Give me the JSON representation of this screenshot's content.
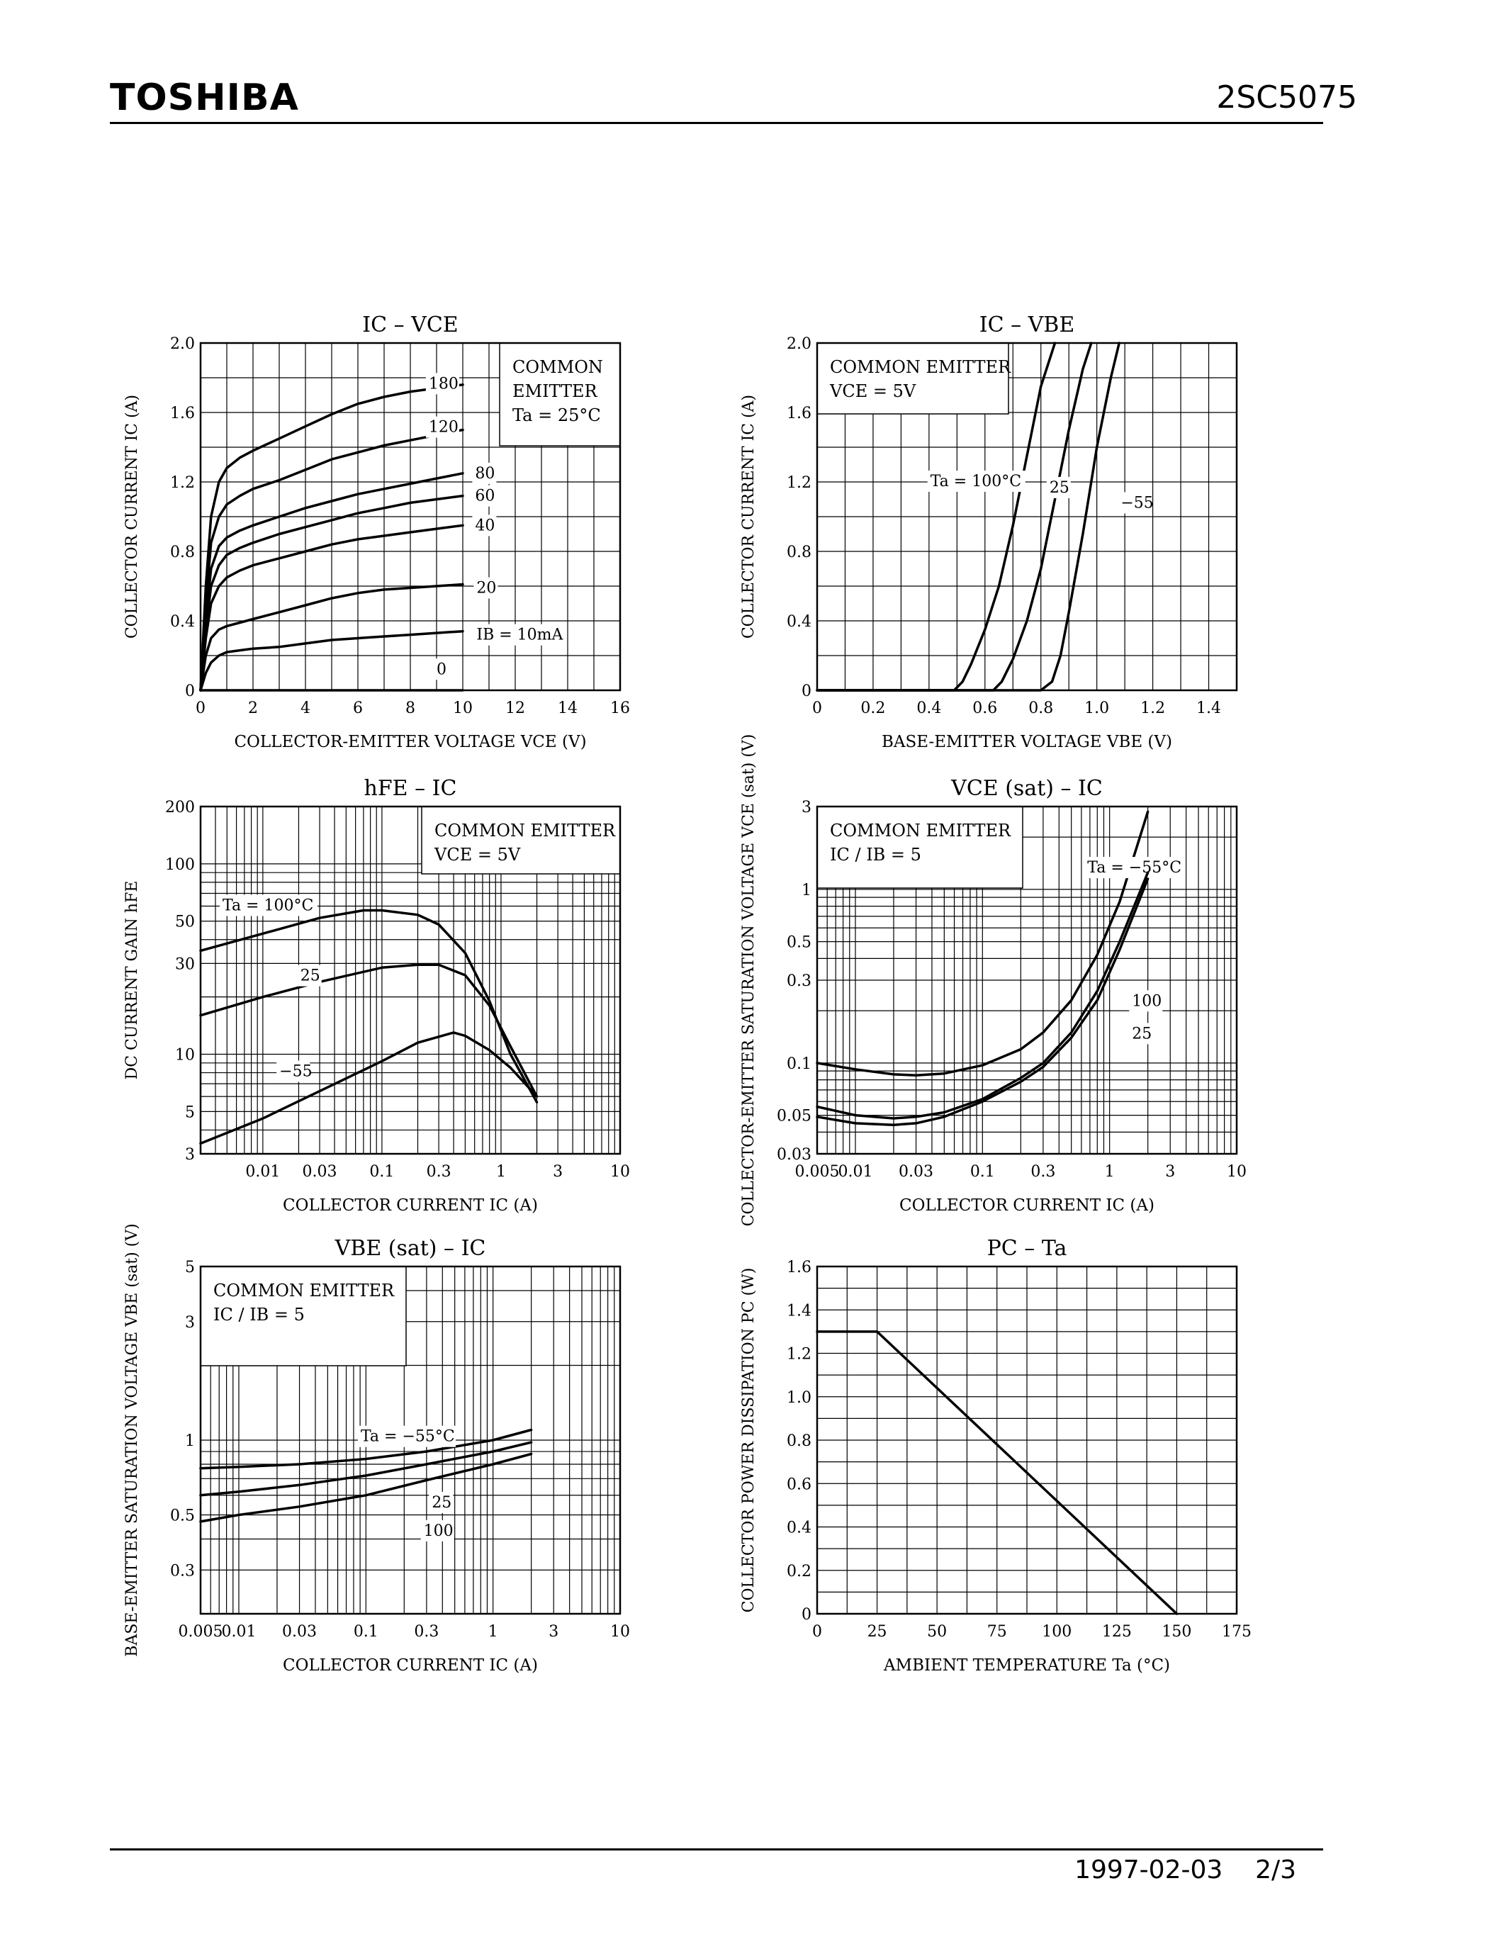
{
  "header": {
    "brand": "TOSHIBA",
    "part_number": "2SC5075"
  },
  "footer": {
    "date": "1997-02-03",
    "page": "2/3"
  },
  "chart_data": [
    {
      "id": "ic-vce",
      "type": "line",
      "title": "IC – VCE",
      "xlabel": "COLLECTOR-EMITTER VOLTAGE   VCE   (V)",
      "ylabel": "COLLECTOR CURRENT   IC   (A)",
      "xscale": "linear",
      "yscale": "linear",
      "xlim": [
        0,
        16
      ],
      "ylim": [
        0,
        2.0
      ],
      "xticks": [
        0,
        2,
        4,
        6,
        8,
        10,
        12,
        14,
        16
      ],
      "yticks": [
        0,
        0.4,
        0.8,
        1.2,
        1.6,
        2.0
      ],
      "xtick_labels": [
        "0",
        "2",
        "4",
        "6",
        "8",
        "10",
        "12",
        "14",
        "16"
      ],
      "ytick_labels": [
        "0",
        "0.4",
        "0.8",
        "1.2",
        "1.6",
        "2.0"
      ],
      "annotations": [
        "COMMON",
        "EMITTER",
        "Ta = 25°C"
      ],
      "series": [
        {
          "label": "180",
          "x": [
            0,
            0.2,
            0.4,
            0.7,
            1,
            1.5,
            2,
            3,
            4,
            5,
            6,
            7,
            8,
            9,
            10
          ],
          "y": [
            0,
            0.6,
            1.0,
            1.2,
            1.28,
            1.34,
            1.38,
            1.45,
            1.52,
            1.59,
            1.65,
            1.69,
            1.72,
            1.74,
            1.76
          ]
        },
        {
          "label": "120",
          "x": [
            0,
            0.2,
            0.4,
            0.7,
            1,
            1.5,
            2,
            3,
            4,
            5,
            6,
            7,
            8,
            9,
            10
          ],
          "y": [
            0,
            0.5,
            0.85,
            1.0,
            1.07,
            1.12,
            1.16,
            1.21,
            1.27,
            1.33,
            1.37,
            1.41,
            1.44,
            1.47,
            1.5
          ]
        },
        {
          "label": "80",
          "x": [
            0,
            0.2,
            0.4,
            0.7,
            1,
            1.5,
            2,
            3,
            4,
            5,
            6,
            7,
            8,
            9,
            10
          ],
          "y": [
            0,
            0.4,
            0.7,
            0.83,
            0.88,
            0.92,
            0.95,
            1.0,
            1.05,
            1.09,
            1.13,
            1.16,
            1.19,
            1.22,
            1.25
          ]
        },
        {
          "label": "60",
          "x": [
            0,
            0.2,
            0.4,
            0.7,
            1,
            1.5,
            2,
            3,
            4,
            5,
            6,
            7,
            8,
            9,
            10
          ],
          "y": [
            0,
            0.35,
            0.6,
            0.72,
            0.78,
            0.82,
            0.85,
            0.9,
            0.94,
            0.98,
            1.02,
            1.05,
            1.08,
            1.1,
            1.12
          ]
        },
        {
          "label": "40",
          "x": [
            0,
            0.2,
            0.4,
            0.7,
            1,
            1.5,
            2,
            3,
            4,
            5,
            6,
            7,
            8,
            9,
            10
          ],
          "y": [
            0,
            0.3,
            0.5,
            0.6,
            0.65,
            0.69,
            0.72,
            0.76,
            0.8,
            0.84,
            0.87,
            0.89,
            0.91,
            0.93,
            0.95
          ]
        },
        {
          "label": "20",
          "x": [
            0,
            0.2,
            0.4,
            0.7,
            1,
            1.5,
            2,
            3,
            4,
            5,
            6,
            7,
            8,
            9,
            10
          ],
          "y": [
            0,
            0.2,
            0.3,
            0.35,
            0.37,
            0.39,
            0.41,
            0.45,
            0.49,
            0.53,
            0.56,
            0.58,
            0.59,
            0.6,
            0.61
          ]
        },
        {
          "label": "IB = 10mA",
          "x": [
            0,
            0.2,
            0.4,
            0.7,
            1,
            1.5,
            2,
            3,
            4,
            5,
            6,
            7,
            8,
            9,
            10
          ],
          "y": [
            0,
            0.1,
            0.16,
            0.2,
            0.22,
            0.23,
            0.24,
            0.25,
            0.27,
            0.29,
            0.3,
            0.31,
            0.32,
            0.33,
            0.34
          ]
        },
        {
          "label": "0",
          "x": [
            0,
            10
          ],
          "y": [
            0,
            0
          ]
        }
      ]
    },
    {
      "id": "ic-vbe",
      "type": "line",
      "title": "IC – VBE",
      "xlabel": "BASE-EMITTER VOLTAGE   VBE   (V)",
      "ylabel": "COLLECTOR CURRENT   IC   (A)",
      "xscale": "linear",
      "yscale": "linear",
      "xlim": [
        0,
        1.5
      ],
      "ylim": [
        0,
        2.0
      ],
      "xticks": [
        0,
        0.2,
        0.4,
        0.6,
        0.8,
        1.0,
        1.2,
        1.4
      ],
      "yticks": [
        0,
        0.4,
        0.8,
        1.2,
        1.6,
        2.0
      ],
      "xtick_labels": [
        "0",
        "0.2",
        "0.4",
        "0.6",
        "0.8",
        "1.0",
        "1.2",
        "1.4"
      ],
      "ytick_labels": [
        "0",
        "0.4",
        "0.8",
        "1.2",
        "1.6",
        "2.0"
      ],
      "annotations": [
        "COMMON EMITTER",
        "VCE = 5V"
      ],
      "series": [
        {
          "label": "Ta = 100°C",
          "x": [
            0,
            0.49,
            0.52,
            0.55,
            0.6,
            0.65,
            0.7,
            0.75,
            0.8,
            0.85
          ],
          "y": [
            0,
            0,
            0.05,
            0.15,
            0.35,
            0.6,
            0.95,
            1.35,
            1.75,
            2.0
          ]
        },
        {
          "label": "25",
          "x": [
            0,
            0.63,
            0.66,
            0.7,
            0.75,
            0.8,
            0.85,
            0.9,
            0.95,
            0.98
          ],
          "y": [
            0,
            0,
            0.05,
            0.18,
            0.4,
            0.7,
            1.1,
            1.5,
            1.85,
            2.0
          ]
        },
        {
          "label": "−55",
          "x": [
            0,
            0.8,
            0.84,
            0.87,
            0.9,
            0.95,
            1.0,
            1.05,
            1.08
          ],
          "y": [
            0,
            0,
            0.05,
            0.2,
            0.45,
            0.9,
            1.4,
            1.8,
            2.0
          ]
        }
      ]
    },
    {
      "id": "hfe-ic",
      "type": "line",
      "title": "hFE – IC",
      "xlabel": "COLLECTOR CURRENT   IC   (A)",
      "ylabel": "DC CURRENT GAIN   hFE",
      "xscale": "log",
      "yscale": "log",
      "xlim": [
        0.003,
        10
      ],
      "ylim": [
        3,
        200
      ],
      "xticks": [
        0.01,
        0.03,
        0.1,
        0.3,
        1,
        3,
        10
      ],
      "yticks": [
        3,
        5,
        10,
        30,
        50,
        100,
        200
      ],
      "xtick_labels": [
        "0.01",
        "0.03",
        "0.1",
        "0.3",
        "1",
        "3",
        "10"
      ],
      "ytick_labels": [
        "3",
        "5",
        "10",
        "30",
        "50",
        "100",
        "200"
      ],
      "annotations": [
        "COMMON EMITTER",
        "VCE = 5V"
      ],
      "series": [
        {
          "label": "Ta = 100°C",
          "x": [
            0.003,
            0.01,
            0.03,
            0.07,
            0.1,
            0.2,
            0.3,
            0.5,
            0.8,
            1.2,
            2.0
          ],
          "y": [
            35,
            43,
            52,
            57,
            57,
            54,
            48,
            34,
            19,
            10,
            5.6
          ]
        },
        {
          "label": "25",
          "x": [
            0.003,
            0.01,
            0.03,
            0.1,
            0.2,
            0.3,
            0.5,
            0.8,
            1.2,
            2.0
          ],
          "y": [
            16,
            20,
            24,
            28.5,
            29.5,
            29.5,
            26,
            18,
            11,
            6
          ]
        },
        {
          "label": "−55",
          "x": [
            0.003,
            0.01,
            0.03,
            0.1,
            0.2,
            0.4,
            0.5,
            0.8,
            1.2,
            2.0
          ],
          "y": [
            3.4,
            4.6,
            6.4,
            9.2,
            11.5,
            13,
            12.5,
            10.5,
            8.5,
            6
          ]
        }
      ]
    },
    {
      "id": "vcesat-ic",
      "type": "line",
      "title": "VCE (sat) – IC",
      "xlabel": "COLLECTOR CURRENT   IC   (A)",
      "ylabel": "COLLECTOR-EMITTER SATURATION VOLTAGE   VCE (sat)   (V)",
      "xscale": "log",
      "yscale": "log",
      "xlim": [
        0.005,
        10
      ],
      "ylim": [
        0.03,
        3
      ],
      "xticks": [
        0.005,
        0.01,
        0.03,
        0.1,
        0.3,
        1,
        3,
        10
      ],
      "yticks": [
        0.03,
        0.05,
        0.1,
        0.3,
        0.5,
        1,
        3
      ],
      "xtick_labels": [
        "0.005",
        "0.01",
        "0.03",
        "0.1",
        "0.3",
        "1",
        "3",
        "10"
      ],
      "ytick_labels": [
        "0.03",
        "0.05",
        "0.1",
        "0.3",
        "0.5",
        "1",
        "3"
      ],
      "annotations": [
        "COMMON EMITTER",
        "IC / IB = 5"
      ],
      "series": [
        {
          "label": "Ta = −55°C",
          "x": [
            0.005,
            0.01,
            0.02,
            0.03,
            0.05,
            0.1,
            0.2,
            0.3,
            0.5,
            0.8,
            1.2,
            2.0
          ],
          "y": [
            0.1,
            0.092,
            0.086,
            0.085,
            0.087,
            0.097,
            0.12,
            0.15,
            0.23,
            0.42,
            0.85,
            2.8
          ]
        },
        {
          "label": "100",
          "x": [
            0.005,
            0.01,
            0.02,
            0.03,
            0.05,
            0.1,
            0.2,
            0.3,
            0.5,
            0.8,
            1.2,
            2.0
          ],
          "y": [
            0.056,
            0.05,
            0.048,
            0.049,
            0.052,
            0.062,
            0.082,
            0.1,
            0.15,
            0.26,
            0.5,
            1.25
          ]
        },
        {
          "label": "25",
          "x": [
            0.005,
            0.01,
            0.02,
            0.03,
            0.05,
            0.1,
            0.2,
            0.3,
            0.5,
            0.8,
            1.2,
            2.0
          ],
          "y": [
            0.049,
            0.045,
            0.044,
            0.045,
            0.049,
            0.06,
            0.078,
            0.095,
            0.14,
            0.23,
            0.45,
            1.15
          ]
        }
      ]
    },
    {
      "id": "vbesat-ic",
      "type": "line",
      "title": "VBE (sat) – IC",
      "xlabel": "COLLECTOR CURRENT   IC   (A)",
      "ylabel": "BASE-EMITTER SATURATION VOLTAGE   VBE (sat)   (V)",
      "xscale": "log",
      "yscale": "log",
      "xlim": [
        0.005,
        10
      ],
      "ylim": [
        0.2,
        5
      ],
      "xticks": [
        0.005,
        0.01,
        0.03,
        0.1,
        0.3,
        1,
        3,
        10
      ],
      "yticks": [
        0.3,
        0.5,
        1,
        3,
        5
      ],
      "xtick_labels": [
        "0.005",
        "0.01",
        "0.03",
        "0.1",
        "0.3",
        "1",
        "3",
        "10"
      ],
      "ytick_labels": [
        "0.3",
        "0.5",
        "1",
        "3",
        "5"
      ],
      "annotations": [
        "COMMON EMITTER",
        "IC / IB = 5"
      ],
      "series": [
        {
          "label": "Ta = −55°C",
          "x": [
            0.005,
            0.01,
            0.03,
            0.1,
            0.3,
            1.0,
            2.0
          ],
          "y": [
            0.77,
            0.78,
            0.8,
            0.84,
            0.9,
            1.0,
            1.1
          ]
        },
        {
          "label": "25",
          "x": [
            0.005,
            0.01,
            0.03,
            0.1,
            0.3,
            1.0,
            2.0
          ],
          "y": [
            0.6,
            0.62,
            0.66,
            0.72,
            0.8,
            0.9,
            0.98
          ]
        },
        {
          "label": "100",
          "x": [
            0.005,
            0.01,
            0.03,
            0.1,
            0.3,
            1.0,
            2.0
          ],
          "y": [
            0.47,
            0.5,
            0.54,
            0.6,
            0.69,
            0.8,
            0.88
          ]
        }
      ]
    },
    {
      "id": "pc-ta",
      "type": "line",
      "title": "PC – Ta",
      "xlabel": "AMBIENT TEMPERATURE   Ta   (°C)",
      "ylabel": "COLLECTOR POWER DISSIPATION   PC   (W)",
      "xscale": "linear",
      "yscale": "linear",
      "xlim": [
        0,
        175
      ],
      "ylim": [
        0,
        1.6
      ],
      "xticks": [
        0,
        25,
        50,
        75,
        100,
        125,
        150,
        175
      ],
      "yticks": [
        0,
        0.2,
        0.4,
        0.6,
        0.8,
        1.0,
        1.2,
        1.4,
        1.6
      ],
      "xtick_labels": [
        "0",
        "25",
        "50",
        "75",
        "100",
        "125",
        "150",
        "175"
      ],
      "ytick_labels": [
        "0",
        "0.2",
        "0.4",
        "0.6",
        "0.8",
        "1.0",
        "1.2",
        "1.4",
        "1.6"
      ],
      "series": [
        {
          "label": "",
          "x": [
            0,
            25,
            150
          ],
          "y": [
            1.3,
            1.3,
            0
          ]
        }
      ]
    }
  ]
}
